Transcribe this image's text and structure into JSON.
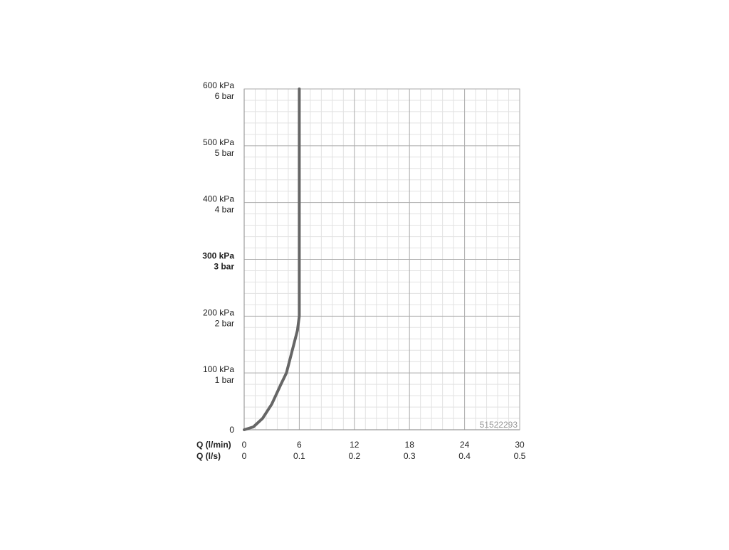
{
  "chart_data": {
    "type": "line",
    "x_axis_label": "Q (l/min)",
    "x2_axis_label": "Q (l/s)",
    "xlim": [
      0,
      30
    ],
    "xticks": [
      0,
      6,
      12,
      18,
      24,
      30
    ],
    "x2lim": [
      0,
      0.5
    ],
    "x2ticks": [
      0,
      0.1,
      0.2,
      0.3,
      0.4,
      0.5
    ],
    "ylim": [
      0,
      600
    ],
    "yticks": [
      0,
      {
        "value": 100,
        "label": "100 kPa"
      },
      {
        "value": 200,
        "label": "200 kPa"
      },
      {
        "value": 300,
        "label": "300 kPa"
      },
      {
        "value": 400,
        "label": "400 kPa"
      },
      {
        "value": 500,
        "label": "500 kPa"
      },
      {
        "value": 600,
        "label": "600 kPa"
      }
    ],
    "ytick_bar_labels": [
      null,
      "1 bar",
      "2 bar",
      "3 bar",
      "4 bar",
      "5 bar",
      "6 bar"
    ],
    "bold_ytick": 300,
    "grid": true,
    "minor_grid_divisions": 5,
    "code": "51522293",
    "series": [
      {
        "color": "#666666",
        "x": [
          0,
          1,
          2,
          3,
          4,
          4.6,
          5.4,
          5.8,
          6,
          6
        ],
        "values": [
          0,
          5,
          20,
          45,
          80,
          100,
          150,
          175,
          200,
          600
        ]
      }
    ]
  }
}
